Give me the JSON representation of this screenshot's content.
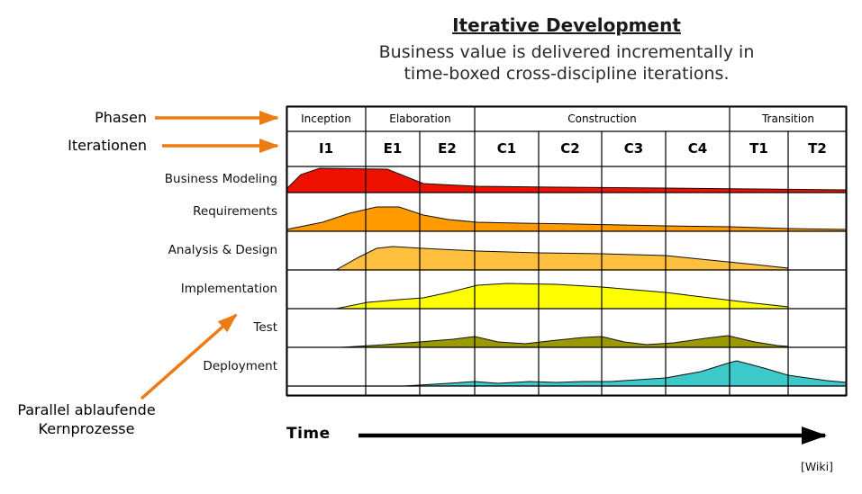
{
  "header": {
    "title": "Iterative Development",
    "subtitle_line1": "Business value is delivered incrementally in",
    "subtitle_line2": "time-boxed cross-discipline iterations."
  },
  "side_annotations": {
    "phases_label": "Phasen",
    "iterations_label": "Iterationen",
    "parallel_label_line1": "Parallel ablaufende",
    "parallel_label_line2": "Kernprozesse"
  },
  "colors": {
    "accent_arrow": "#ee7b11",
    "grid_line": "#000000"
  },
  "phases": [
    {
      "label": "Inception"
    },
    {
      "label": "Elaboration"
    },
    {
      "label": "Construction"
    },
    {
      "label": "Transition"
    }
  ],
  "iterations": [
    {
      "label": "I1"
    },
    {
      "label": "E1"
    },
    {
      "label": "E2"
    },
    {
      "label": "C1"
    },
    {
      "label": "C2"
    },
    {
      "label": "C3"
    },
    {
      "label": "C4"
    },
    {
      "label": "T1"
    },
    {
      "label": "T2"
    }
  ],
  "disciplines": [
    {
      "label": "Business Modeling",
      "color": "#ee1000",
      "curve": [
        [
          0,
          4
        ],
        [
          16,
          20
        ],
        [
          37,
          27
        ],
        [
          112,
          26
        ],
        [
          152,
          10
        ],
        [
          212,
          7
        ],
        [
          300,
          6
        ],
        [
          421,
          5
        ],
        [
          520,
          4
        ],
        [
          622,
          3
        ]
      ]
    },
    {
      "label": "Requirements",
      "color": "#ff9a00",
      "curve": [
        [
          0,
          2
        ],
        [
          40,
          10
        ],
        [
          70,
          20
        ],
        [
          100,
          27
        ],
        [
          125,
          27
        ],
        [
          152,
          18
        ],
        [
          180,
          13
        ],
        [
          212,
          10
        ],
        [
          260,
          9
        ],
        [
          322,
          8
        ],
        [
          421,
          6
        ],
        [
          492,
          5
        ],
        [
          557,
          3
        ],
        [
          622,
          2
        ]
      ]
    },
    {
      "label": "Analysis & Design",
      "color": "#ffc040",
      "curve": [
        [
          55,
          0
        ],
        [
          80,
          14
        ],
        [
          100,
          24
        ],
        [
          118,
          26
        ],
        [
          152,
          24
        ],
        [
          212,
          21
        ],
        [
          280,
          19
        ],
        [
          350,
          18
        ],
        [
          421,
          16
        ],
        [
          460,
          12
        ],
        [
          520,
          6
        ],
        [
          557,
          2
        ]
      ]
    },
    {
      "label": "Implementation",
      "color": "#ffff00",
      "curve": [
        [
          55,
          0
        ],
        [
          90,
          7
        ],
        [
          125,
          10
        ],
        [
          152,
          12
        ],
        [
          180,
          18
        ],
        [
          212,
          26
        ],
        [
          245,
          28
        ],
        [
          300,
          27
        ],
        [
          350,
          24
        ],
        [
          421,
          18
        ],
        [
          470,
          12
        ],
        [
          520,
          6
        ],
        [
          557,
          2
        ]
      ]
    },
    {
      "label": "Test",
      "color": "#9a9a00",
      "curve": [
        [
          60,
          0
        ],
        [
          110,
          3
        ],
        [
          160,
          7
        ],
        [
          185,
          9
        ],
        [
          209,
          12
        ],
        [
          235,
          6
        ],
        [
          265,
          4
        ],
        [
          300,
          8
        ],
        [
          330,
          11
        ],
        [
          350,
          12
        ],
        [
          375,
          6
        ],
        [
          400,
          3
        ],
        [
          430,
          5
        ],
        [
          465,
          10
        ],
        [
          490,
          13
        ],
        [
          520,
          6
        ],
        [
          545,
          2
        ],
        [
          557,
          1
        ]
      ]
    },
    {
      "label": "Deployment",
      "color": "#3cc9c9",
      "curve": [
        [
          130,
          0
        ],
        [
          180,
          3
        ],
        [
          209,
          5
        ],
        [
          235,
          3
        ],
        [
          270,
          5
        ],
        [
          300,
          4
        ],
        [
          330,
          5
        ],
        [
          360,
          5
        ],
        [
          421,
          9
        ],
        [
          460,
          16
        ],
        [
          492,
          26
        ],
        [
          500,
          28
        ],
        [
          530,
          20
        ],
        [
          557,
          12
        ],
        [
          600,
          6
        ],
        [
          622,
          4
        ]
      ]
    }
  ],
  "time_axis": {
    "label": "Time"
  },
  "attribution": "[Wiki]"
}
